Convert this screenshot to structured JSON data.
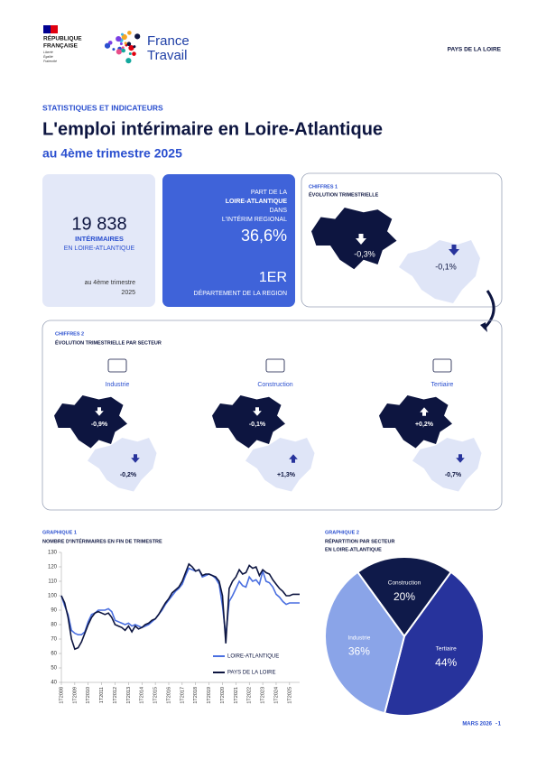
{
  "header": {
    "republique": [
      "RÉPUBLIQUE",
      "FRANÇAISE"
    ],
    "motto": [
      "Liberté",
      "Égalité",
      "Fraternité"
    ],
    "brand": [
      "France",
      "Travail"
    ],
    "region": "PAYS DE LA LOIRE"
  },
  "intro": {
    "kicker": "STATISTIQUES ET INDICATEURS",
    "title": "L'emploi intérimaire en Loire-Atlantique",
    "subtitle": "au 4ème trimestre 2025"
  },
  "kpi1": {
    "value": "19 838",
    "label": "INTÉRIMAIRES",
    "sublabel": "EN LOIRE-ATLANTIQUE",
    "period": [
      "au 4ème trimestre",
      "2025"
    ]
  },
  "kpi2": {
    "label": [
      "PART DE LA",
      "LOIRE-ATLANTIQUE",
      "DANS",
      "L'INTÉRIM REGIONAL"
    ],
    "value": "36,6%",
    "rank": "1ER",
    "rank_label": "DÉPARTEMENT DE LA REGION"
  },
  "chiffres1": {
    "kicker": "CHIFFRES 1",
    "title": "ÉVOLUTION TRIMESTRIELLE",
    "dept": "-0,3%",
    "region": "-0,1%"
  },
  "chiffres2": {
    "kicker": "CHIFFRES 2",
    "title": "ÉVOLUTION TRIMESTRIELLE PAR SECTEUR",
    "sectors": [
      {
        "name": "Industrie",
        "dept": "-0,9%",
        "region": "-0,2%"
      },
      {
        "name": "Construction",
        "dept": "-0,1%",
        "region": "+1,3%"
      },
      {
        "name": "Tertiaire",
        "dept": "+0,2%",
        "region": "-0,7%"
      }
    ]
  },
  "chart_data": [
    {
      "type": "line",
      "title": "GRAPHIQUE 1",
      "subtitle": "NOMBRE D'INTÉRIMAIRES EN FIN DE TRIMESTRE",
      "categories": [
        "1T2008",
        null,
        null,
        null,
        "1T2009",
        null,
        null,
        null,
        "1T2010",
        null,
        null,
        null,
        "1T2011",
        null,
        null,
        null,
        "1T2012",
        null,
        null,
        null,
        "1T2013",
        null,
        null,
        null,
        "1T2014",
        null,
        null,
        null,
        "1T2015",
        null,
        null,
        null,
        "1T2016",
        null,
        null,
        null,
        "1T2017",
        null,
        null,
        null,
        "1T2018",
        null,
        null,
        null,
        "1T2019",
        null,
        null,
        null,
        "1T2020",
        null,
        null,
        null,
        "1T2021",
        null,
        null,
        null,
        "1T2022",
        null,
        null,
        null,
        "1T2023",
        null,
        null,
        null,
        "1T2024",
        null,
        null,
        null,
        "1T2025",
        null,
        null,
        null
      ],
      "series": [
        {
          "name": "LOIRE-ATLANTIQUE",
          "color": "#4a6fe0",
          "values": [
            100,
            93,
            87,
            76,
            74,
            73,
            73,
            75,
            82,
            87,
            88,
            90,
            90,
            90,
            91,
            89,
            83,
            82,
            81,
            80,
            81,
            79,
            80,
            79,
            78,
            79,
            80,
            82,
            84,
            87,
            90,
            94,
            97,
            100,
            103,
            105,
            108,
            114,
            119,
            118,
            117,
            118,
            113,
            114,
            115,
            114,
            112,
            108,
            93,
            72,
            96,
            100,
            105,
            110,
            107,
            106,
            113,
            110,
            111,
            108,
            117,
            110,
            109,
            106,
            101,
            99,
            96,
            94,
            95,
            95,
            95,
            95
          ]
        },
        {
          "name": "PAYS DE LA LOIRE",
          "color": "#0d1540",
          "values": [
            100,
            95,
            85,
            70,
            63,
            64,
            68,
            74,
            80,
            85,
            88,
            89,
            88,
            87,
            88,
            85,
            80,
            79,
            78,
            76,
            79,
            75,
            79,
            77,
            78,
            80,
            81,
            83,
            84,
            87,
            91,
            95,
            98,
            102,
            104,
            106,
            110,
            116,
            122,
            120,
            117,
            118,
            114,
            115,
            115,
            114,
            113,
            110,
            100,
            67,
            105,
            110,
            113,
            118,
            115,
            116,
            121,
            119,
            120,
            114,
            118,
            116,
            115,
            111,
            108,
            105,
            103,
            100,
            100,
            101,
            101,
            101
          ]
        }
      ],
      "ylim": [
        40,
        130
      ],
      "yticks": [
        40,
        50,
        60,
        70,
        80,
        90,
        100,
        110,
        120,
        130
      ],
      "grid": false
    },
    {
      "type": "pie",
      "title": "GRAPHIQUE 2",
      "subtitle": [
        "RÉPARTITION PAR SECTEUR",
        "EN LOIRE-ATLANTIQUE"
      ],
      "categories": [
        "Construction",
        "Tertiaire",
        "Industrie"
      ],
      "values": [
        20,
        44,
        36
      ],
      "value_labels": [
        "20%",
        "44%",
        "36%"
      ],
      "colors": [
        "#0f1a4a",
        "#27339c",
        "#8aa4e8"
      ]
    }
  ],
  "footer": {
    "date": "MARS 2026",
    "page": "1"
  }
}
